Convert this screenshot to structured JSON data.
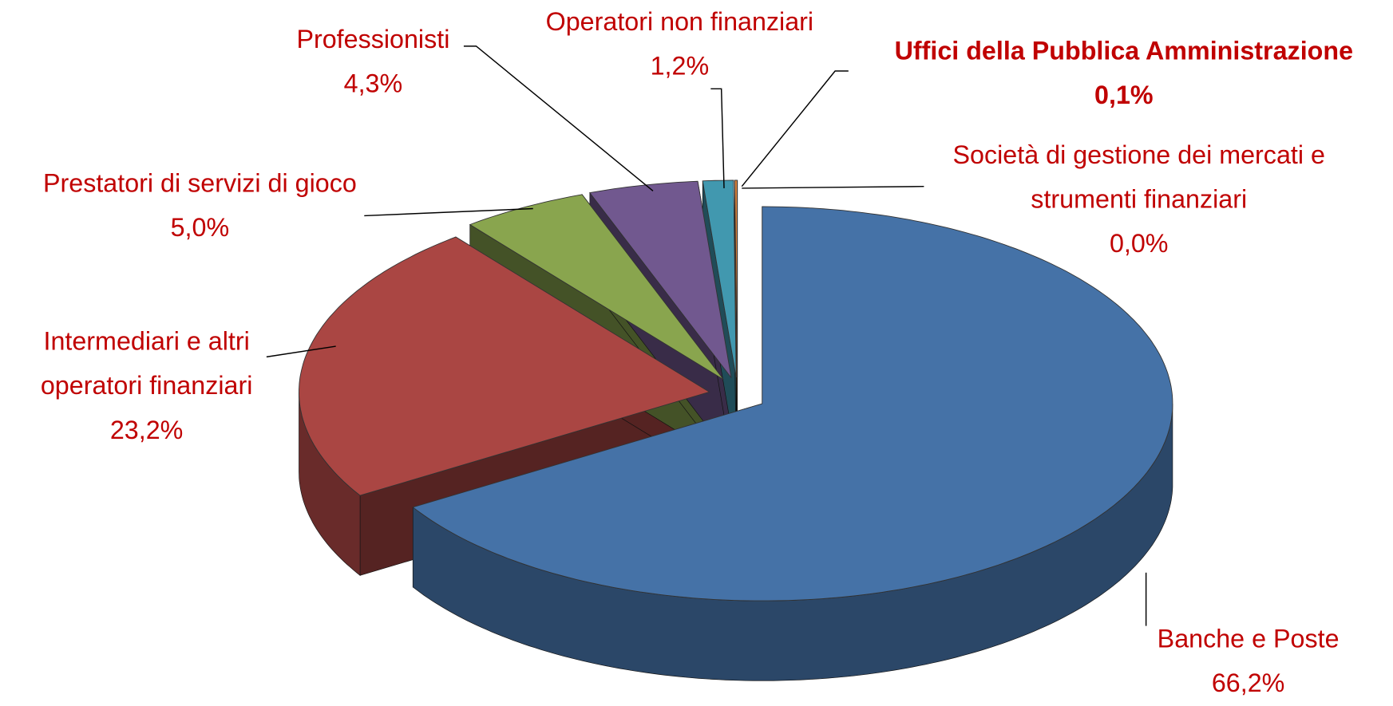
{
  "chart_data": {
    "type": "pie3d",
    "categories": [
      "Banche e Poste",
      "Intermediari e altri operatori finanziari",
      "Prestatori di servizi di gioco",
      "Professionisti",
      "Operatori non finanziari",
      "Uffici della Pubblica Amministrazione",
      "Società di gestione dei mercati e strumenti finanziari"
    ],
    "values": [
      66.2,
      23.2,
      5.0,
      4.3,
      1.2,
      0.1,
      0.0
    ],
    "value_labels": [
      "66,2%",
      "23,2%",
      "5,0%",
      "4,3%",
      "1,2%",
      "0,1%",
      "0,0%"
    ],
    "colors": [
      "#4572a7",
      "#aa4643",
      "#89a54e",
      "#71588f",
      "#4198af",
      "#db843d",
      "#93a9cf"
    ],
    "label_color": "#c00000"
  }
}
